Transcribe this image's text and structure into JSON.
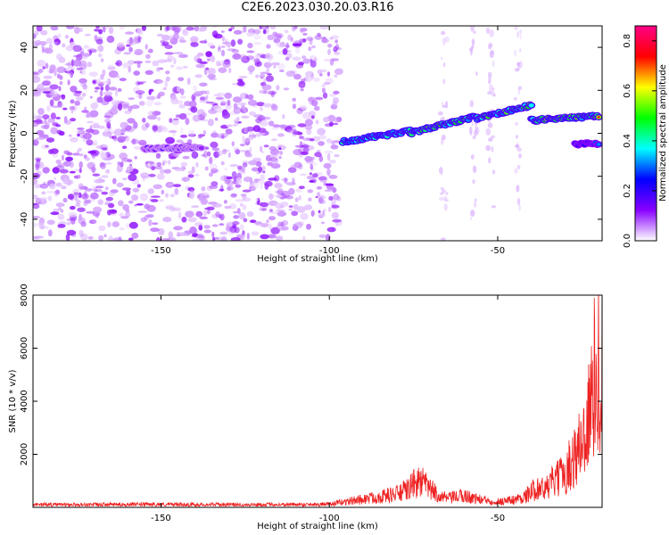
{
  "title": "C2E6.2023.030.20.03.R16",
  "chart_data": [
    {
      "type": "heatmap",
      "xlabel": "Height of straight line (km)",
      "ylabel": "Frequency (Hz)",
      "xlim": [
        -188,
        -19
      ],
      "ylim": [
        -50,
        50
      ],
      "x_ticks": [
        -150,
        -100,
        -50
      ],
      "y_ticks": [
        40,
        20,
        0,
        -20,
        -40
      ],
      "colorbar": {
        "label": "Normalized spectral amplitude",
        "range": [
          0,
          0.86
        ],
        "ticks": [
          0.0,
          0.2,
          0.4,
          0.6,
          0.8
        ],
        "colors": [
          "#ffffff",
          "#8800ff",
          "#0000ff",
          "#00ffff",
          "#00ff00",
          "#ffff00",
          "#ff0000",
          "#ff0088"
        ]
      },
      "noise_region": {
        "x": [
          -188,
          -97
        ],
        "amplitude": 0.08
      },
      "features": [
        {
          "x": [
            -155,
            -138
          ],
          "y": -7,
          "amplitude": [
            0.1,
            0.3
          ]
        },
        {
          "x": [
            -96,
            -76
          ],
          "y": [
            -4,
            1
          ],
          "amplitude": [
            0.3,
            0.55
          ]
        },
        {
          "x": [
            -76,
            -56
          ],
          "y": [
            0,
            8
          ],
          "amplitude": [
            0.3,
            0.75
          ]
        },
        {
          "x": [
            -56,
            -40
          ],
          "y": [
            7,
            13
          ],
          "amplitude": [
            0.3,
            0.8
          ]
        },
        {
          "x": [
            -40,
            -20
          ],
          "y": [
            6,
            8
          ],
          "amplitude": [
            0.3,
            0.86
          ]
        },
        {
          "x": [
            -27,
            -20
          ],
          "y": -5,
          "amplitude": [
            0.2,
            0.4
          ]
        }
      ]
    },
    {
      "type": "line",
      "xlabel": "Height of straight line (km)",
      "ylabel": "SNR (10 * v/v)",
      "xlim": [
        -188,
        -19
      ],
      "ylim": [
        0,
        8000
      ],
      "x_ticks": [
        -150,
        -100,
        -50
      ],
      "y_ticks": [
        2000,
        4000,
        6000,
        8000
      ],
      "color": "#ee2222",
      "series": [
        {
          "x": [
            -188,
            -175,
            -160,
            -140,
            -120,
            -100,
            -95,
            -90,
            -85,
            -80,
            -77,
            -75,
            -73,
            -71,
            -69,
            -67,
            -65,
            -62,
            -60,
            -58,
            -55,
            -50,
            -45,
            -42,
            -40,
            -38,
            -36,
            -34,
            -32,
            -30,
            -28,
            -26,
            -24,
            -22,
            -21,
            -20,
            -19
          ],
          "y": [
            150,
            140,
            155,
            150,
            145,
            160,
            300,
            420,
            550,
            700,
            900,
            1200,
            1350,
            1100,
            800,
            600,
            450,
            550,
            600,
            520,
            400,
            300,
            400,
            550,
            800,
            1100,
            900,
            1300,
            1500,
            1800,
            2400,
            3000,
            4000,
            5500,
            7200,
            7600,
            7900
          ]
        }
      ]
    }
  ]
}
